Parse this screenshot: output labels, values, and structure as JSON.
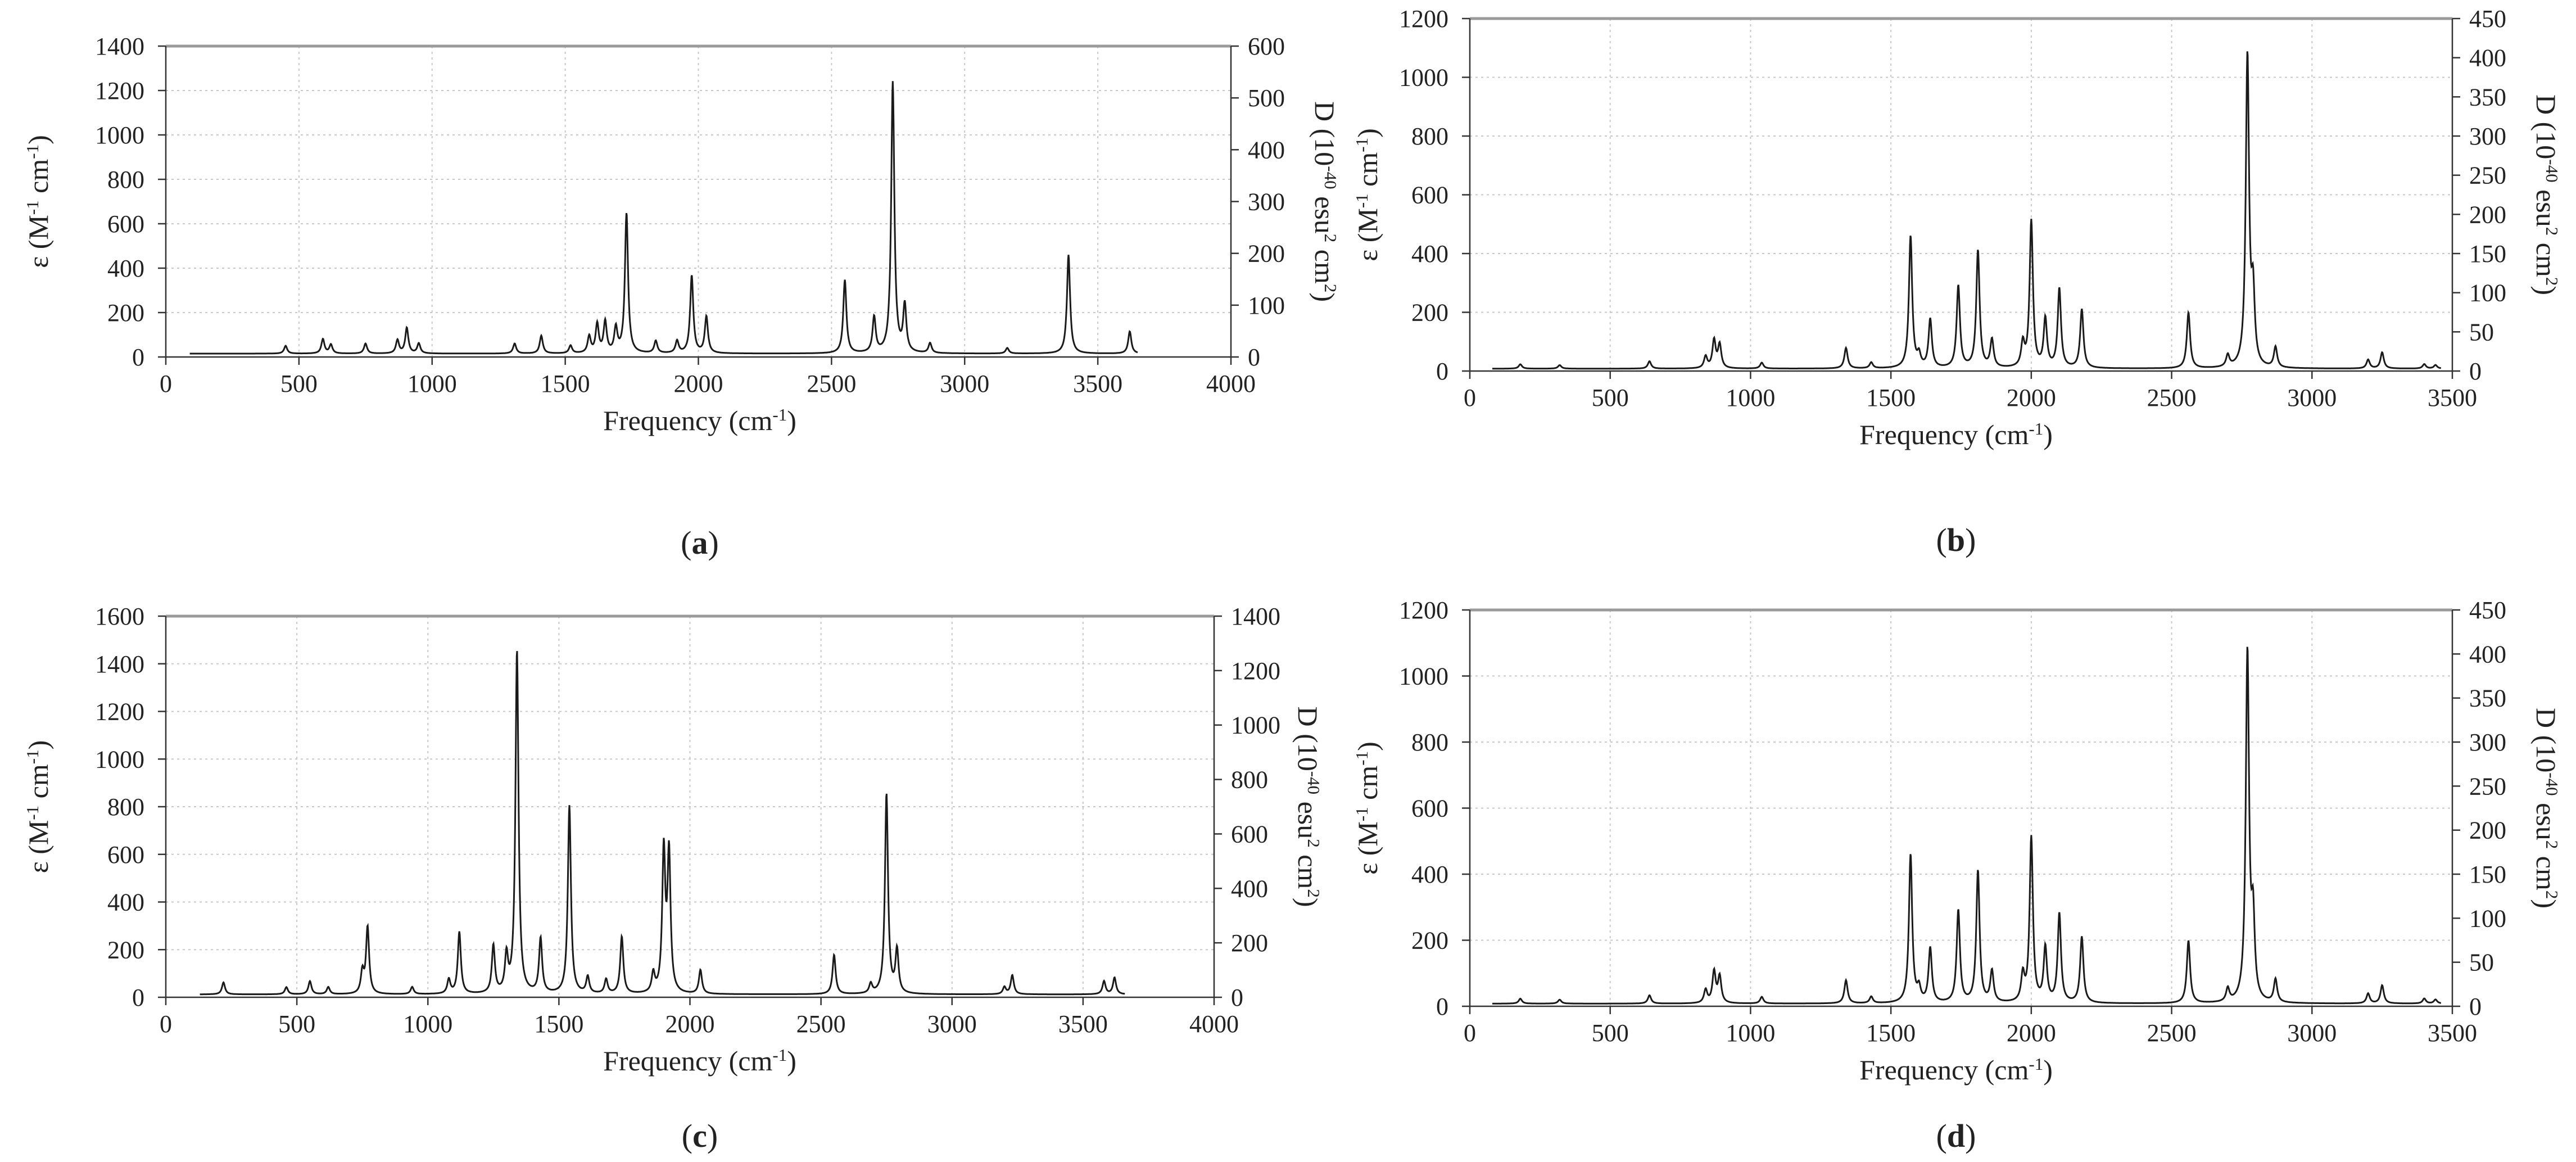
{
  "chart_data": [
    {
      "panel_label": "(a)",
      "type": "line",
      "xlabel": "Frequency (cm-1)",
      "ylabel": "ε (M-1 cm-1)",
      "y2label": "D (10-40 esu2 cm2)",
      "xlim": [
        0,
        4000
      ],
      "ylim": [
        0,
        1400
      ],
      "y2lim": [
        0,
        600
      ],
      "xticks": [
        0,
        500,
        1000,
        1500,
        2000,
        2500,
        3000,
        3500,
        4000
      ],
      "yticks": [
        0,
        200,
        400,
        600,
        800,
        1000,
        1200,
        1400
      ],
      "y2ticks": [
        0,
        100,
        200,
        300,
        400,
        500,
        600
      ],
      "x_range": [
        90,
        3650
      ],
      "baseline": 15,
      "grid": true,
      "peaks": [
        [
          450,
          35
        ],
        [
          590,
          65
        ],
        [
          620,
          40
        ],
        [
          750,
          45
        ],
        [
          870,
          60
        ],
        [
          905,
          115
        ],
        [
          950,
          45
        ],
        [
          1310,
          45
        ],
        [
          1410,
          80
        ],
        [
          1520,
          35
        ],
        [
          1590,
          75
        ],
        [
          1620,
          130
        ],
        [
          1650,
          140
        ],
        [
          1690,
          110
        ],
        [
          1730,
          630
        ],
        [
          1840,
          55
        ],
        [
          1920,
          55
        ],
        [
          1975,
          350
        ],
        [
          2030,
          165
        ],
        [
          2550,
          330
        ],
        [
          2660,
          160
        ],
        [
          2730,
          1220
        ],
        [
          2775,
          210
        ],
        [
          2870,
          45
        ],
        [
          3160,
          25
        ],
        [
          3390,
          445
        ],
        [
          3620,
          100
        ]
      ]
    },
    {
      "panel_label": "(b)",
      "type": "line",
      "xlabel": "Frequency (cm-1)",
      "ylabel": "ε (M-1 cm-1)",
      "y2label": "D (10-40 esu2 cm2)",
      "xlim": [
        0,
        3500
      ],
      "ylim": [
        0,
        1200
      ],
      "y2lim": [
        0,
        450
      ],
      "xticks": [
        0,
        500,
        1000,
        1500,
        2000,
        2500,
        3000,
        3500
      ],
      "yticks": [
        0,
        200,
        400,
        600,
        800,
        1000,
        1200
      ],
      "y2ticks": [
        0,
        50,
        100,
        150,
        200,
        250,
        300,
        350,
        400,
        450
      ],
      "x_range": [
        80,
        3460
      ],
      "baseline": 8,
      "grid": true,
      "peaks": [
        [
          180,
          15
        ],
        [
          320,
          12
        ],
        [
          640,
          25
        ],
        [
          840,
          40
        ],
        [
          870,
          95
        ],
        [
          890,
          80
        ],
        [
          1040,
          20
        ],
        [
          1340,
          70
        ],
        [
          1430,
          20
        ],
        [
          1570,
          450
        ],
        [
          1600,
          40
        ],
        [
          1640,
          165
        ],
        [
          1740,
          280
        ],
        [
          1810,
          400
        ],
        [
          1860,
          95
        ],
        [
          1970,
          80
        ],
        [
          2000,
          500
        ],
        [
          2050,
          165
        ],
        [
          2100,
          270
        ],
        [
          2180,
          200
        ],
        [
          2560,
          190
        ],
        [
          2700,
          40
        ],
        [
          2770,
          1060
        ],
        [
          2790,
          235
        ],
        [
          2870,
          70
        ],
        [
          3200,
          30
        ],
        [
          3250,
          55
        ],
        [
          3400,
          15
        ],
        [
          3440,
          12
        ]
      ]
    },
    {
      "panel_label": "(c)",
      "type": "line",
      "xlabel": "Frequency (cm-1)",
      "ylabel": "ε (M-1 cm-1)",
      "y2label": "D (10-40 esu2 cm2)",
      "xlim": [
        0,
        4000
      ],
      "ylim": [
        0,
        1600
      ],
      "y2lim": [
        0,
        1400
      ],
      "xticks": [
        0,
        500,
        1000,
        1500,
        2000,
        2500,
        3000,
        3500,
        4000
      ],
      "yticks": [
        0,
        200,
        400,
        600,
        800,
        1000,
        1200,
        1400,
        1600
      ],
      "y2ticks": [
        0,
        200,
        400,
        600,
        800,
        1000,
        1200,
        1400
      ],
      "x_range": [
        130,
        3660
      ],
      "baseline": 12,
      "grid": true,
      "peaks": [
        [
          220,
          50
        ],
        [
          460,
          30
        ],
        [
          550,
          55
        ],
        [
          620,
          30
        ],
        [
          750,
          90
        ],
        [
          770,
          280
        ],
        [
          940,
          30
        ],
        [
          1080,
          60
        ],
        [
          1120,
          260
        ],
        [
          1250,
          200
        ],
        [
          1300,
          150
        ],
        [
          1340,
          1440
        ],
        [
          1430,
          230
        ],
        [
          1540,
          790
        ],
        [
          1610,
          70
        ],
        [
          1680,
          60
        ],
        [
          1740,
          240
        ],
        [
          1860,
          80
        ],
        [
          1900,
          590
        ],
        [
          1920,
          580
        ],
        [
          2040,
          100
        ],
        [
          2550,
          165
        ],
        [
          2690,
          40
        ],
        [
          2750,
          840
        ],
        [
          2790,
          180
        ],
        [
          3200,
          30
        ],
        [
          3230,
          80
        ],
        [
          3580,
          55
        ],
        [
          3620,
          70
        ]
      ]
    },
    {
      "panel_label": "(d)",
      "type": "line",
      "xlabel": "Frequency (cm-1)",
      "ylabel": "ε (M-1 cm-1)",
      "y2label": "D (10-40 esu2 cm2)",
      "xlim": [
        0,
        3500
      ],
      "ylim": [
        0,
        1200
      ],
      "y2lim": [
        0,
        450
      ],
      "xticks": [
        0,
        500,
        1000,
        1500,
        2000,
        2500,
        3000,
        3500
      ],
      "yticks": [
        0,
        200,
        400,
        600,
        800,
        1000,
        1200
      ],
      "y2ticks": [
        0,
        50,
        100,
        150,
        200,
        250,
        300,
        350,
        400,
        450
      ],
      "x_range": [
        80,
        3460
      ],
      "baseline": 8,
      "grid": true,
      "peaks": [
        [
          180,
          15
        ],
        [
          320,
          12
        ],
        [
          640,
          25
        ],
        [
          840,
          40
        ],
        [
          870,
          95
        ],
        [
          890,
          80
        ],
        [
          1040,
          20
        ],
        [
          1340,
          70
        ],
        [
          1430,
          20
        ],
        [
          1570,
          450
        ],
        [
          1600,
          40
        ],
        [
          1640,
          165
        ],
        [
          1740,
          280
        ],
        [
          1810,
          400
        ],
        [
          1860,
          95
        ],
        [
          1970,
          80
        ],
        [
          2000,
          500
        ],
        [
          2050,
          165
        ],
        [
          2100,
          270
        ],
        [
          2180,
          200
        ],
        [
          2560,
          190
        ],
        [
          2700,
          40
        ],
        [
          2770,
          1060
        ],
        [
          2790,
          235
        ],
        [
          2870,
          70
        ],
        [
          3200,
          30
        ],
        [
          3250,
          55
        ],
        [
          3400,
          15
        ],
        [
          3440,
          12
        ]
      ]
    }
  ]
}
